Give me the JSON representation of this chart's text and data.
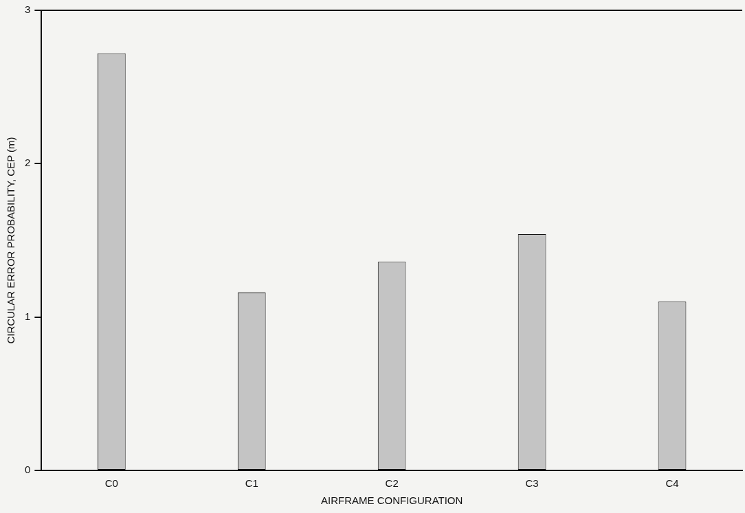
{
  "chart_data": {
    "type": "bar",
    "xlabel": "AIRFRAME CONFIGURATION",
    "ylabel": "CIRCULAR ERROR PROBABILITY, CEP (m)",
    "categories": [
      "C0",
      "C1",
      "C2",
      "C3",
      "C4"
    ],
    "values": [
      2.72,
      1.16,
      1.36,
      1.54,
      1.1
    ],
    "color": "#c4c4c4",
    "ylim": [
      0,
      3
    ],
    "yticks": [
      0,
      1,
      2,
      3
    ],
    "grid": false,
    "legend": false
  }
}
